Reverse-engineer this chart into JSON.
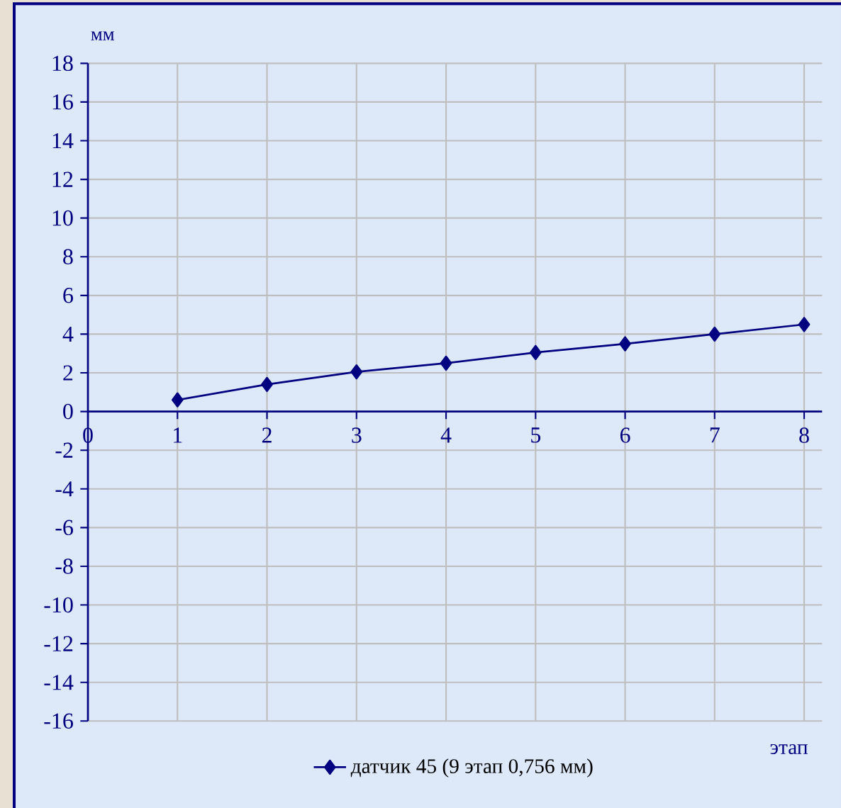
{
  "chart_data": {
    "type": "line",
    "xlabel": "этап",
    "ylabel": "мм",
    "x": [
      1,
      2,
      3,
      4,
      5,
      6,
      7,
      8
    ],
    "series": [
      {
        "name": "датчик 45 (9 этап 0,756 мм)",
        "color": "#000080",
        "values": [
          0.6,
          1.4,
          2.05,
          2.5,
          3.05,
          3.5,
          4.0,
          4.5
        ]
      }
    ],
    "xlim": [
      0,
      8.2
    ],
    "xticks": [
      0,
      1,
      2,
      3,
      4,
      5,
      6,
      7,
      8
    ],
    "ylim": [
      -16,
      18
    ],
    "yticks": [
      -16,
      -14,
      -12,
      -10,
      -8,
      -6,
      -4,
      -2,
      0,
      2,
      4,
      6,
      8,
      10,
      12,
      14,
      16,
      18
    ],
    "grid": true,
    "legend": "bottom",
    "marker": "diamond",
    "line_style": "solid"
  }
}
